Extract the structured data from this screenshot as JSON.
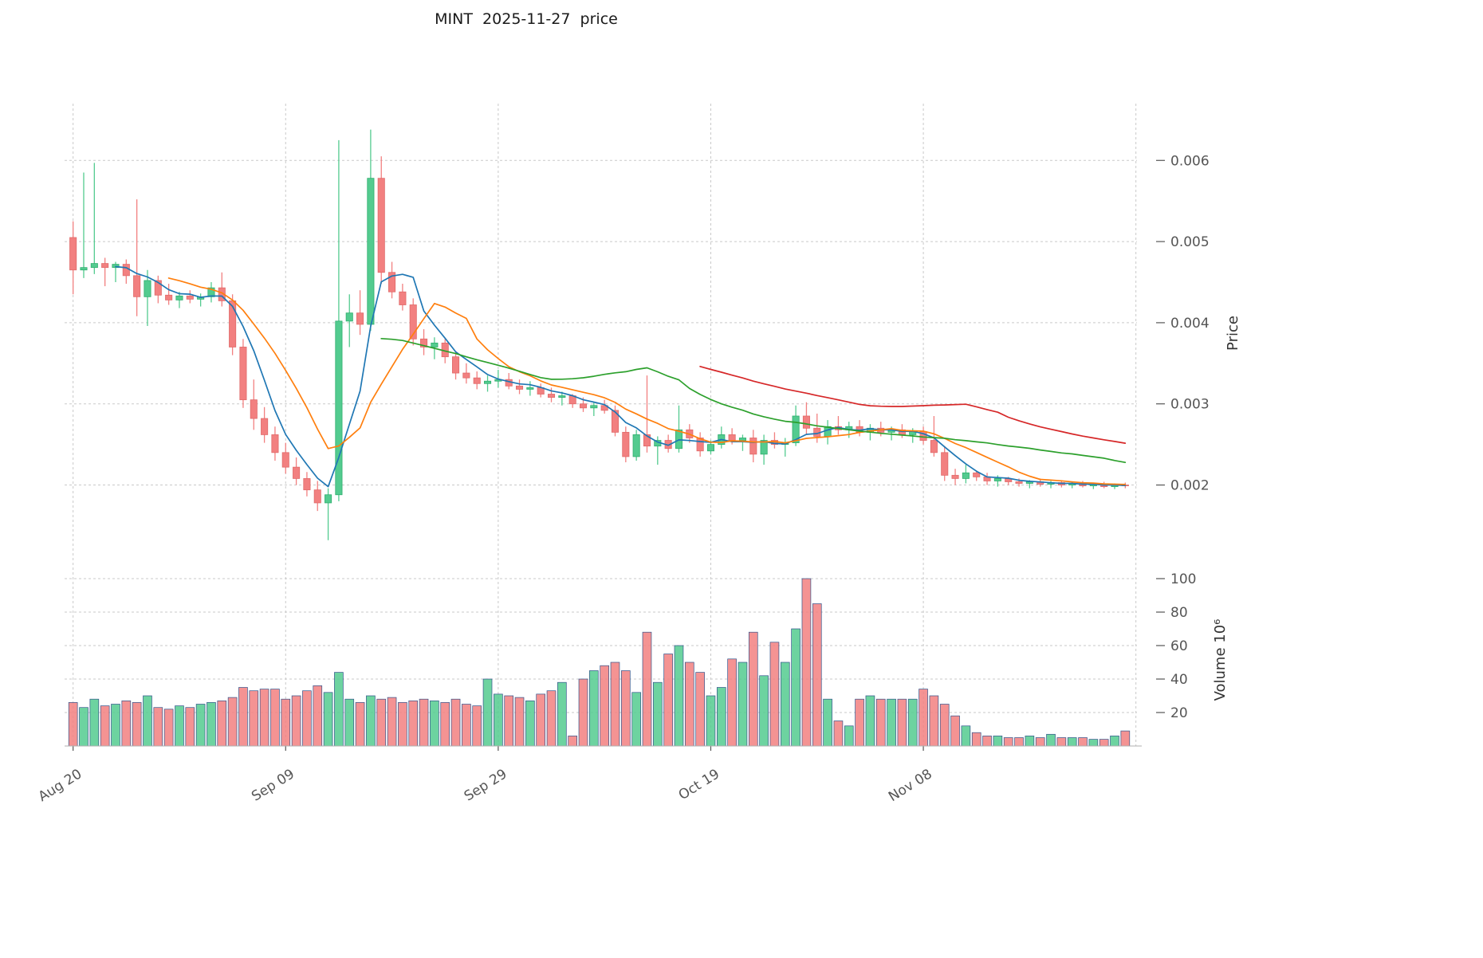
{
  "title": "MINT  2025-11-27  price",
  "axes": {
    "price_label": "Price",
    "volume_label": "Volume  10⁶"
  },
  "chart_data": {
    "type": "candlestick",
    "title": "MINT 2025-11-27 price",
    "panels": [
      "price",
      "volume"
    ],
    "grid": true,
    "legend": false,
    "x_ticks": [
      {
        "index": 0,
        "label": "Aug 20"
      },
      {
        "index": 20,
        "label": "Sep 09"
      },
      {
        "index": 40,
        "label": "Sep 29"
      },
      {
        "index": 60,
        "label": "Oct 19"
      },
      {
        "index": 80,
        "label": "Nov 08"
      },
      {
        "index": 100,
        "label": ""
      }
    ],
    "price_axis": {
      "range": [
        0.0012,
        0.0067
      ],
      "ticks": [
        {
          "v": 0.002,
          "label": "0.002"
        },
        {
          "v": 0.003,
          "label": "0.003"
        },
        {
          "v": 0.004,
          "label": "0.004"
        },
        {
          "v": 0.005,
          "label": "0.005"
        },
        {
          "v": 0.006,
          "label": "0.006"
        }
      ]
    },
    "volume_axis": {
      "range": [
        0,
        110
      ],
      "unit": "10^6",
      "ticks": [
        {
          "v": 20,
          "label": "20"
        },
        {
          "v": 40,
          "label": "40"
        },
        {
          "v": 60,
          "label": "60"
        },
        {
          "v": 80,
          "label": "80"
        },
        {
          "v": 100,
          "label": "100"
        }
      ]
    },
    "moving_averages": [
      {
        "name": "MA5",
        "window": 5,
        "color": "#1f77b4"
      },
      {
        "name": "MA10",
        "window": 10,
        "color": "#ff7f0e"
      },
      {
        "name": "MA30",
        "window": 30,
        "color": "#2ca02c"
      },
      {
        "name": "MA60",
        "window": 60,
        "color": "#d62728"
      }
    ],
    "colors": {
      "up": "#53cb8f",
      "down": "#f28080",
      "up_edge": "#2fae6e",
      "down_edge": "#e06a6a",
      "volume_edge": "#33548c",
      "grid": "#c9c9c9",
      "tick_text": "#555555"
    },
    "candles_format": [
      "open",
      "high",
      "low",
      "close",
      "volume_millions"
    ],
    "candles": [
      [
        0.00505,
        0.00525,
        0.00435,
        0.00465,
        26
      ],
      [
        0.00465,
        0.00585,
        0.00455,
        0.00468,
        23
      ],
      [
        0.00468,
        0.00597,
        0.0046,
        0.00473,
        28
      ],
      [
        0.00473,
        0.0048,
        0.00445,
        0.00468,
        24
      ],
      [
        0.00468,
        0.00475,
        0.0045,
        0.00472,
        25
      ],
      [
        0.00472,
        0.00478,
        0.00448,
        0.00458,
        27
      ],
      [
        0.00458,
        0.00552,
        0.00408,
        0.00432,
        26
      ],
      [
        0.00432,
        0.00465,
        0.00396,
        0.00452,
        30
      ],
      [
        0.00452,
        0.00458,
        0.00424,
        0.00434,
        23
      ],
      [
        0.00434,
        0.00448,
        0.00422,
        0.00428,
        22
      ],
      [
        0.00428,
        0.00438,
        0.00418,
        0.00433,
        24
      ],
      [
        0.00433,
        0.0044,
        0.00424,
        0.00429,
        23
      ],
      [
        0.00429,
        0.00436,
        0.0042,
        0.00432,
        25
      ],
      [
        0.00432,
        0.0045,
        0.00425,
        0.00443,
        26
      ],
      [
        0.00443,
        0.00462,
        0.0042,
        0.00427,
        27
      ],
      [
        0.00427,
        0.00435,
        0.0036,
        0.0037,
        29
      ],
      [
        0.0037,
        0.0038,
        0.00295,
        0.00305,
        35
      ],
      [
        0.00305,
        0.0033,
        0.00268,
        0.00282,
        33
      ],
      [
        0.00282,
        0.00296,
        0.00252,
        0.00262,
        34
      ],
      [
        0.00262,
        0.00272,
        0.0023,
        0.0024,
        34
      ],
      [
        0.0024,
        0.00252,
        0.00214,
        0.00222,
        28
      ],
      [
        0.00222,
        0.00234,
        0.002,
        0.00208,
        30
      ],
      [
        0.00208,
        0.00216,
        0.00186,
        0.00194,
        33
      ],
      [
        0.00194,
        0.00205,
        0.00168,
        0.00178,
        36
      ],
      [
        0.00178,
        0.00196,
        0.00132,
        0.00188,
        32
      ],
      [
        0.00188,
        0.00625,
        0.0018,
        0.00402,
        44
      ],
      [
        0.00402,
        0.00435,
        0.0037,
        0.00412,
        28
      ],
      [
        0.00412,
        0.0044,
        0.00385,
        0.00398,
        26
      ],
      [
        0.00398,
        0.00638,
        0.0039,
        0.00578,
        30
      ],
      [
        0.00578,
        0.00605,
        0.00448,
        0.00462,
        28
      ],
      [
        0.00462,
        0.00475,
        0.0043,
        0.00438,
        29
      ],
      [
        0.00438,
        0.00448,
        0.00415,
        0.00422,
        26
      ],
      [
        0.00422,
        0.0043,
        0.00372,
        0.0038,
        27
      ],
      [
        0.0038,
        0.00392,
        0.0036,
        0.0037,
        28
      ],
      [
        0.0037,
        0.00382,
        0.00355,
        0.00375,
        27
      ],
      [
        0.00375,
        0.0038,
        0.0035,
        0.00358,
        26
      ],
      [
        0.00358,
        0.00365,
        0.0033,
        0.00338,
        28
      ],
      [
        0.00338,
        0.0035,
        0.00325,
        0.00332,
        25
      ],
      [
        0.00332,
        0.0034,
        0.00318,
        0.00325,
        24
      ],
      [
        0.00325,
        0.00335,
        0.00315,
        0.00328,
        40
      ],
      [
        0.00328,
        0.00342,
        0.0032,
        0.0033,
        31
      ],
      [
        0.0033,
        0.00338,
        0.00318,
        0.00322,
        30
      ],
      [
        0.00322,
        0.0033,
        0.00312,
        0.00318,
        29
      ],
      [
        0.00318,
        0.00328,
        0.0031,
        0.0032,
        27
      ],
      [
        0.0032,
        0.00325,
        0.00308,
        0.00312,
        31
      ],
      [
        0.00312,
        0.0032,
        0.00302,
        0.00308,
        33
      ],
      [
        0.00308,
        0.00315,
        0.00298,
        0.0031,
        38
      ],
      [
        0.0031,
        0.00312,
        0.00295,
        0.003,
        6
      ],
      [
        0.003,
        0.00308,
        0.0029,
        0.00295,
        40
      ],
      [
        0.00295,
        0.00302,
        0.00285,
        0.00298,
        45
      ],
      [
        0.00298,
        0.00305,
        0.00288,
        0.00292,
        48
      ],
      [
        0.00292,
        0.00298,
        0.0026,
        0.00265,
        50
      ],
      [
        0.00265,
        0.00272,
        0.00228,
        0.00235,
        45
      ],
      [
        0.00235,
        0.00268,
        0.0023,
        0.00262,
        32
      ],
      [
        0.00262,
        0.00335,
        0.0024,
        0.00248,
        68
      ],
      [
        0.00248,
        0.0026,
        0.00225,
        0.00255,
        38
      ],
      [
        0.00255,
        0.00262,
        0.0024,
        0.00245,
        55
      ],
      [
        0.00245,
        0.00298,
        0.0024,
        0.00268,
        60
      ],
      [
        0.00268,
        0.00275,
        0.00252,
        0.00258,
        50
      ],
      [
        0.00258,
        0.00265,
        0.00235,
        0.00242,
        44
      ],
      [
        0.00242,
        0.00255,
        0.00238,
        0.0025,
        30
      ],
      [
        0.0025,
        0.00272,
        0.00245,
        0.00262,
        35
      ],
      [
        0.00262,
        0.0027,
        0.0025,
        0.00255,
        52
      ],
      [
        0.00255,
        0.00262,
        0.00242,
        0.00258,
        50
      ],
      [
        0.00258,
        0.00268,
        0.00228,
        0.00238,
        68
      ],
      [
        0.00238,
        0.00262,
        0.00225,
        0.00255,
        42
      ],
      [
        0.00255,
        0.00265,
        0.00245,
        0.0025,
        62
      ],
      [
        0.0025,
        0.00258,
        0.00235,
        0.00252,
        50
      ],
      [
        0.00252,
        0.00298,
        0.00248,
        0.00285,
        70
      ],
      [
        0.00285,
        0.00302,
        0.00262,
        0.0027,
        100
      ],
      [
        0.0027,
        0.00288,
        0.00252,
        0.0026,
        85
      ],
      [
        0.0026,
        0.0028,
        0.0025,
        0.00272,
        28
      ],
      [
        0.00272,
        0.00285,
        0.00262,
        0.00268,
        15
      ],
      [
        0.00268,
        0.00278,
        0.00258,
        0.00272,
        12
      ],
      [
        0.00272,
        0.0028,
        0.0026,
        0.00265,
        28
      ],
      [
        0.00265,
        0.00275,
        0.00255,
        0.0027,
        30
      ],
      [
        0.0027,
        0.00278,
        0.0026,
        0.00265,
        28
      ],
      [
        0.00265,
        0.00272,
        0.00255,
        0.00268,
        28
      ],
      [
        0.00268,
        0.00275,
        0.00258,
        0.00262,
        28
      ],
      [
        0.00262,
        0.0027,
        0.00252,
        0.00266,
        28
      ],
      [
        0.00266,
        0.00272,
        0.0025,
        0.00255,
        34
      ],
      [
        0.00255,
        0.00285,
        0.00235,
        0.0024,
        30
      ],
      [
        0.0024,
        0.00248,
        0.00205,
        0.00212,
        25
      ],
      [
        0.00212,
        0.0022,
        0.002,
        0.00208,
        18
      ],
      [
        0.00208,
        0.00225,
        0.00202,
        0.00215,
        12
      ],
      [
        0.00215,
        0.00218,
        0.00205,
        0.0021,
        8
      ],
      [
        0.0021,
        0.00215,
        0.002,
        0.00205,
        6
      ],
      [
        0.00205,
        0.00212,
        0.00198,
        0.00208,
        6
      ],
      [
        0.00208,
        0.0021,
        0.002,
        0.00204,
        5
      ],
      [
        0.00204,
        0.00208,
        0.00198,
        0.00202,
        5
      ],
      [
        0.00202,
        0.00206,
        0.00196,
        0.00204,
        6
      ],
      [
        0.00204,
        0.00208,
        0.00198,
        0.00201,
        5
      ],
      [
        0.00201,
        0.00205,
        0.00196,
        0.00203,
        7
      ],
      [
        0.00203,
        0.00206,
        0.00197,
        0.002,
        5
      ],
      [
        0.002,
        0.00204,
        0.00196,
        0.00202,
        5
      ],
      [
        0.00202,
        0.00205,
        0.00197,
        0.00199,
        5
      ],
      [
        0.00199,
        0.00203,
        0.00195,
        0.00201,
        4
      ],
      [
        0.00201,
        0.00204,
        0.00196,
        0.00198,
        4
      ],
      [
        0.00198,
        0.00202,
        0.00195,
        0.002,
        6
      ],
      [
        0.002,
        0.00203,
        0.00196,
        0.00199,
        9
      ]
    ]
  }
}
